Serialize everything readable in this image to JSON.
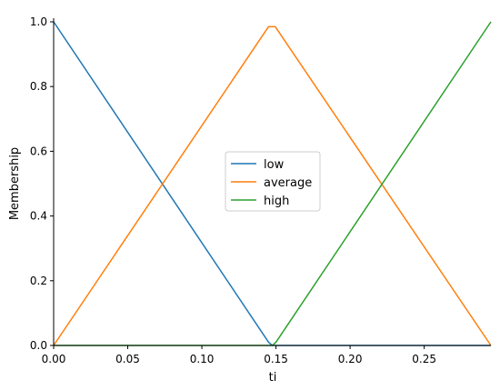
{
  "chart_data": {
    "type": "line",
    "title": "",
    "xlabel": "ti",
    "ylabel": "Membership",
    "xlim": [
      0.0,
      0.295
    ],
    "ylim": [
      0.0,
      1.0
    ],
    "x_ticks": [
      "0.00",
      "0.05",
      "0.10",
      "0.15",
      "0.20",
      "0.25"
    ],
    "x_tick_values": [
      0.0,
      0.05,
      0.1,
      0.15,
      0.2,
      0.25
    ],
    "y_ticks": [
      "0.0",
      "0.2",
      "0.4",
      "0.6",
      "0.8",
      "1.0"
    ],
    "y_tick_values": [
      0.0,
      0.2,
      0.4,
      0.6,
      0.8,
      1.0
    ],
    "grid": false,
    "legend_position": "center",
    "series": [
      {
        "name": "low",
        "color": "#1f77b4",
        "x": [
          0.0,
          0.145,
          0.1475,
          0.295
        ],
        "y": [
          1.0,
          0.01,
          0.0,
          0.0
        ]
      },
      {
        "name": "average",
        "color": "#ff7f0e",
        "x": [
          0.0,
          0.145,
          0.1495,
          0.295
        ],
        "y": [
          0.0,
          0.985,
          0.985,
          0.0
        ]
      },
      {
        "name": "high",
        "color": "#2ca02c",
        "x": [
          0.0,
          0.1475,
          0.15,
          0.295
        ],
        "y": [
          0.0,
          0.0,
          0.01,
          1.0
        ]
      }
    ]
  }
}
